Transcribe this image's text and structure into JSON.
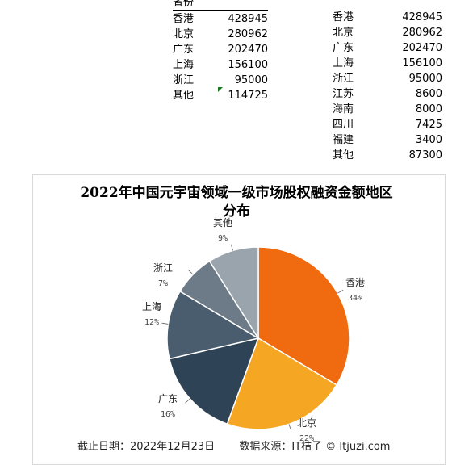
{
  "table_left": {
    "header": "省份",
    "rows": [
      {
        "name": "香港",
        "value": "428945"
      },
      {
        "name": "北京",
        "value": "280962"
      },
      {
        "name": "广东",
        "value": "202470"
      },
      {
        "name": "上海",
        "value": "156100"
      },
      {
        "name": "浙江",
        "value": "95000"
      },
      {
        "name": "其他",
        "value": "114725"
      }
    ]
  },
  "table_right": {
    "rows": [
      {
        "name": "香港",
        "value": "428945"
      },
      {
        "name": "北京",
        "value": "280962"
      },
      {
        "name": "广东",
        "value": "202470"
      },
      {
        "name": "上海",
        "value": "156100"
      },
      {
        "name": "浙江",
        "value": "95000"
      },
      {
        "name": "江苏",
        "value": "8600"
      },
      {
        "name": "海南",
        "value": "8000"
      },
      {
        "name": "四川",
        "value": "7425"
      },
      {
        "name": "福建",
        "value": "3400"
      },
      {
        "name": "其他",
        "value": "87300"
      }
    ]
  },
  "chart_data": {
    "type": "pie",
    "title_line1": "2022年中国元宇宙领域一级市场股权融资金额地区",
    "title_line2": "分布",
    "slices": [
      {
        "label": "香港",
        "pct": "34%",
        "value": 428945,
        "color": "#f06a0f"
      },
      {
        "label": "北京",
        "pct": "22%",
        "value": 280962,
        "color": "#f5a623"
      },
      {
        "label": "广东",
        "pct": "16%",
        "value": 202470,
        "color": "#2f4356"
      },
      {
        "label": "上海",
        "pct": "12%",
        "value": 156100,
        "color": "#4a5d6e"
      },
      {
        "label": "浙江",
        "pct": "7%",
        "value": 95000,
        "color": "#6d7b88"
      },
      {
        "label": "其他",
        "pct": "9%",
        "value": 114725,
        "color": "#9aa4ad"
      }
    ]
  },
  "footer": {
    "date": "截止日期：2022年12月23日",
    "source": "数据来源：IT桔子 © Itjuzi.com"
  }
}
